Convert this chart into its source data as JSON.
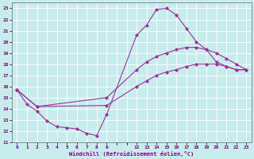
{
  "xlabel": "Windchill (Refroidissement éolien,°C)",
  "bg_color": "#c8ecec",
  "line_color": "#993399",
  "grid_color": "#aacccc",
  "xlim": [
    -0.5,
    23.5
  ],
  "ylim": [
    11,
    23.5
  ],
  "yticks": [
    11,
    12,
    13,
    14,
    15,
    16,
    17,
    18,
    19,
    20,
    21,
    22,
    23
  ],
  "xticks": [
    0,
    1,
    2,
    3,
    4,
    5,
    6,
    7,
    8,
    9,
    12,
    13,
    14,
    15,
    16,
    17,
    18,
    19,
    20,
    21,
    22,
    23
  ],
  "line1_x": [
    0,
    1,
    2,
    3,
    4,
    5,
    6,
    7,
    8,
    9,
    12,
    13,
    14,
    15,
    16,
    17,
    18,
    19,
    20,
    21,
    22,
    23
  ],
  "line1_y": [
    15.7,
    14.4,
    13.8,
    12.9,
    12.4,
    12.3,
    12.2,
    11.8,
    11.6,
    13.5,
    20.6,
    21.5,
    22.9,
    23.0,
    22.4,
    21.2,
    20.0,
    19.3,
    18.2,
    17.8,
    17.5,
    17.5
  ],
  "line2_x": [
    0,
    2,
    9,
    12,
    13,
    14,
    15,
    16,
    17,
    18,
    19,
    20,
    21,
    22,
    23
  ],
  "line2_y": [
    15.7,
    14.2,
    15.0,
    17.5,
    18.2,
    18.7,
    19.0,
    19.3,
    19.5,
    19.5,
    19.3,
    19.0,
    18.5,
    18.0,
    17.5
  ],
  "line3_x": [
    0,
    2,
    9,
    12,
    13,
    14,
    15,
    16,
    17,
    18,
    19,
    20,
    21,
    22,
    23
  ],
  "line3_y": [
    15.7,
    14.2,
    14.3,
    16.0,
    16.5,
    17.0,
    17.3,
    17.5,
    17.8,
    18.0,
    18.0,
    18.0,
    17.8,
    17.5,
    17.5
  ]
}
